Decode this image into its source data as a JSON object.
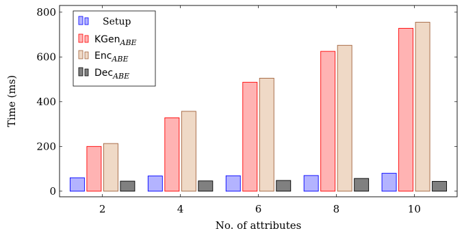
{
  "chart_data": {
    "type": "bar",
    "categories": [
      "2",
      "4",
      "6",
      "8",
      "10"
    ],
    "series": [
      {
        "name": "Setup",
        "values": [
          60,
          68,
          69,
          70,
          80
        ],
        "fill": "#b3b3ff",
        "stroke": "#0000ff"
      },
      {
        "name": "KGen",
        "subscript": "ABE",
        "values": [
          200,
          328,
          487,
          625,
          728
        ],
        "fill": "#ffb3b3",
        "stroke": "#ff0000"
      },
      {
        "name": "Enc",
        "subscript": "ABE",
        "values": [
          213,
          357,
          505,
          652,
          755
        ],
        "fill": "#efd9c6",
        "stroke": "#a0603a"
      },
      {
        "name": "Dec",
        "subscript": "ABE",
        "values": [
          45,
          46,
          48,
          57,
          44
        ],
        "fill": "#808080",
        "stroke": "#000000"
      }
    ],
    "xlabel": "No. of attributes",
    "ylabel": "Time (ms)",
    "ylim": [
      -25,
      830
    ],
    "yticks": [
      0,
      200,
      400,
      600,
      800
    ],
    "legend_position": "top-left",
    "grid": false
  }
}
